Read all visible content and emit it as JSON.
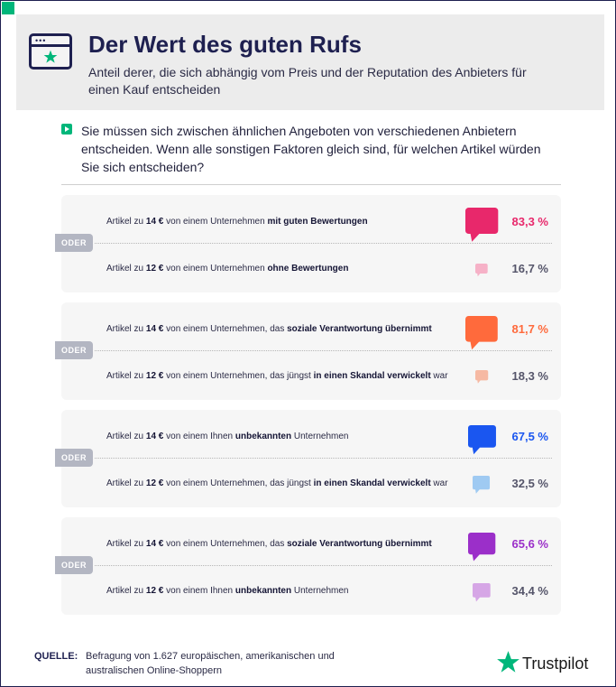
{
  "header": {
    "title": "Der Wert des guten Rufs",
    "subtitle": "Anteil derer, die sich abhängig vom Preis und der Reputation des Anbieters für einen Kauf entscheiden"
  },
  "question": "Sie müssen sich zwischen ähnlichen Angeboten von verschiedenen Anbietern entscheiden. Wenn alle sonstigen Faktoren gleich sind, für welchen Artikel würden Sie sich entscheiden?",
  "or_label": "ODER",
  "chart_data": {
    "type": "table",
    "title": "Der Wert des guten Rufs",
    "unit": "%",
    "pairs": [
      {
        "color": "#e8286b",
        "color_light": "#f6b1c7",
        "options": [
          {
            "pre": "Artikel zu ",
            "price": "14 €",
            "mid": " von einem Unternehmen ",
            "bold": "mit guten Bewertungen",
            "post": "",
            "value": 83.3,
            "value_label": "83,3 %"
          },
          {
            "pre": "Artikel zu ",
            "price": "12 €",
            "mid": " von einem Unternehmen ",
            "bold": "ohne Bewertungen",
            "post": "",
            "value": 16.7,
            "value_label": "16,7 %"
          }
        ]
      },
      {
        "color": "#ff6a3c",
        "color_light": "#f6b9a3",
        "options": [
          {
            "pre": "Artikel zu ",
            "price": "14 €",
            "mid": " von einem Unternehmen, das ",
            "bold": "soziale Verantwortung übernimmt",
            "post": "",
            "value": 81.7,
            "value_label": "81,7 %"
          },
          {
            "pre": "Artikel zu ",
            "price": "12 €",
            "mid": " von einem Unternehmen, das jüngst ",
            "bold": "in einen Skandal verwickelt",
            "post": " war",
            "value": 18.3,
            "value_label": "18,3 %"
          }
        ]
      },
      {
        "color": "#1a56f0",
        "color_light": "#9fcaf2",
        "options": [
          {
            "pre": "Artikel zu ",
            "price": "14 €",
            "mid": " von einem Ihnen ",
            "bold": "unbekannten",
            "post": " Unternehmen",
            "value": 67.5,
            "value_label": "67,5 %"
          },
          {
            "pre": "Artikel zu ",
            "price": "12 €",
            "mid": " von einem Unternehmen, das jüngst ",
            "bold": "in einen Skandal verwickelt",
            "post": " war",
            "value": 32.5,
            "value_label": "32,5 %"
          }
        ]
      },
      {
        "color": "#9b2fc9",
        "color_light": "#d6a6e6",
        "options": [
          {
            "pre": "Artikel zu ",
            "price": "14 €",
            "mid": " von einem Unternehmen, das ",
            "bold": "soziale Verantwortung übernimmt",
            "post": "",
            "value": 65.6,
            "value_label": "65,6 %"
          },
          {
            "pre": "Artikel zu ",
            "price": "12 €",
            "mid": " von einem Ihnen ",
            "bold": "unbekannten",
            "post": " Unternehmen",
            "value": 34.4,
            "value_label": "34,4 %"
          }
        ]
      }
    ]
  },
  "footer": {
    "source_label": "QUELLE:",
    "source_text": "Befragung von 1.627 europäischen, amerikanischen und australischen Online-Shoppern",
    "brand": "Trustpilot",
    "brand_color": "#00b67a"
  }
}
